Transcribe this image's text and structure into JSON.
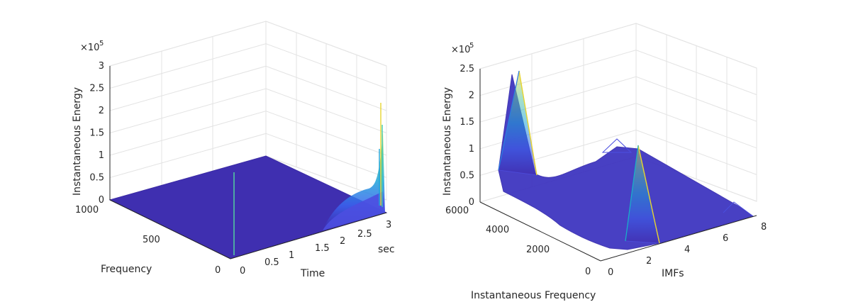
{
  "chart_data": [
    {
      "type": "surface",
      "view": "3d",
      "xlabel": "Time",
      "xunit_label": "sec",
      "ylabel": "Frequency",
      "zlabel": "Instantaneous Energy",
      "z_exponent": "×10^5",
      "xlim": [
        0,
        3
      ],
      "ylim": [
        0,
        1000
      ],
      "zlim": [
        0,
        300000
      ],
      "xticks": [
        "0",
        "0.5",
        "1",
        "1.5",
        "2",
        "2.5",
        "3"
      ],
      "yticks": [
        "0",
        "500",
        "1000"
      ],
      "zticks": [
        "0",
        "0.5",
        "1",
        "1.5",
        "2",
        "2.5",
        "3"
      ],
      "zticks_val": [
        0,
        0.5,
        1,
        1.5,
        2,
        2.5,
        3
      ],
      "grid": true,
      "colormap": "parula",
      "features": [
        {
          "desc": "narrow spike near start",
          "x": 0.02,
          "y": 60,
          "z": 55000
        },
        {
          "desc": "energy rising toward end",
          "x": 3.0,
          "y": 10,
          "z": 210000
        }
      ]
    },
    {
      "type": "mesh",
      "view": "3d",
      "xlabel": "IMFs",
      "ylabel": "Instantaneous Frequency",
      "zlabel": "Instantaneous Energy",
      "z_exponent": "×10^5",
      "xlim": [
        0,
        8
      ],
      "ylim": [
        0,
        6000
      ],
      "zlim": [
        0,
        250000
      ],
      "xticks": [
        "0",
        "2",
        "4",
        "6",
        "8"
      ],
      "yticks": [
        "0",
        "2000",
        "4000",
        "6000"
      ],
      "zticks": [
        "0",
        "0.5",
        "1",
        "1.5",
        "2",
        "2.5"
      ],
      "zticks_val": [
        0,
        0.5,
        1,
        1.5,
        2,
        2.5
      ],
      "grid": true,
      "colormap": "parula",
      "features": [
        {
          "desc": "large peak at low IMF, high frequency",
          "x": 0.3,
          "y": 5600,
          "z": 240000
        },
        {
          "desc": "peak near IMF 2",
          "x": 1.8,
          "y": 300,
          "z": 100000
        },
        {
          "desc": "secondary bump",
          "x": 1.0,
          "y": 2500,
          "z": 100000
        }
      ]
    }
  ]
}
